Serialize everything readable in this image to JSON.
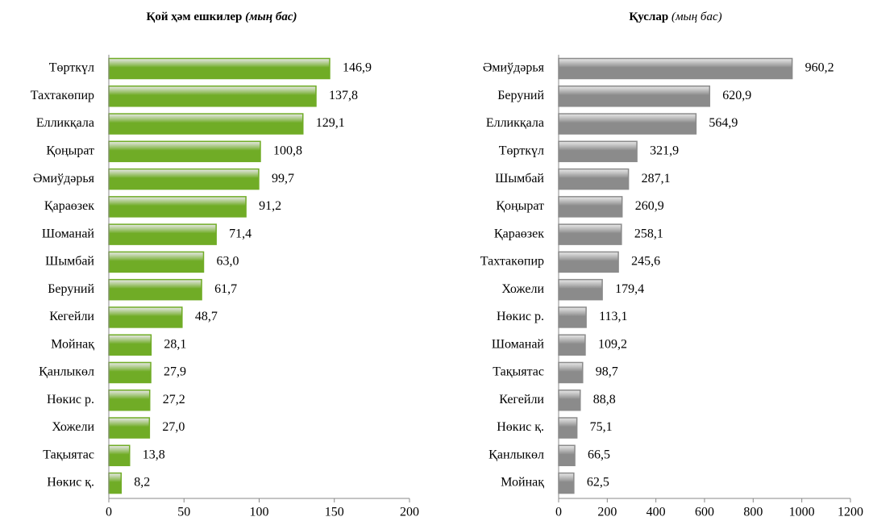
{
  "chart_data": [
    {
      "type": "bar",
      "orientation": "horizontal",
      "title": "Қой ҳәм ешкилер",
      "subtitle": "(мың бас)",
      "categories": [
        "Төрткүл",
        "Тахтакөпир",
        "Елликқала",
        "Қоңырат",
        "Әмиўдәрья",
        "Қараөзек",
        "Шоманай",
        "Шымбай",
        "Беруний",
        "Кегейли",
        "Мойнақ",
        "Қанлыкөл",
        "Нөкис р.",
        "Хожели",
        "Тақыятас",
        "Нөкис қ."
      ],
      "values": [
        146.9,
        137.8,
        129.1,
        100.8,
        99.7,
        91.2,
        71.4,
        63.0,
        61.7,
        48.7,
        28.1,
        27.9,
        27.2,
        27.0,
        13.8,
        8.2
      ],
      "value_labels": [
        "146,9",
        "137,8",
        "129,1",
        "100,8",
        "99,7",
        "91,2",
        "71,4",
        "63,0",
        "61,7",
        "48,7",
        "28,1",
        "27,9",
        "27,2",
        "27,0",
        "13,8",
        "8,2"
      ],
      "xlim": [
        0,
        200
      ],
      "xticks": [
        0,
        50,
        100,
        150,
        200
      ],
      "color": "#7cbf2a"
    },
    {
      "type": "bar",
      "orientation": "horizontal",
      "title": "Қуслар",
      "subtitle": "(мың бас)",
      "categories": [
        "Әмиўдәрья",
        "Беруний",
        "Елликқала",
        "Төрткүл",
        "Шымбай",
        "Қоңырат",
        "Қараөзек",
        "Тахтакөпир",
        "Хожели",
        "Нөкис р.",
        "Шоманай",
        "Тақыятас",
        "Кегейли",
        "Нөкис қ.",
        "Қанлыкөл",
        "Мойнақ"
      ],
      "values": [
        960.2,
        620.9,
        564.9,
        321.9,
        287.1,
        260.9,
        258.1,
        245.6,
        179.4,
        113.1,
        109.2,
        98.7,
        88.8,
        75.1,
        66.5,
        62.5
      ],
      "value_labels": [
        "960,2",
        "620,9",
        "564,9",
        "321,9",
        "287,1",
        "260,9",
        "258,1",
        "245,6",
        "179,4",
        "113,1",
        "109,2",
        "98,7",
        "88,8",
        "75,1",
        "66,5",
        "62,5"
      ],
      "xlim": [
        0,
        1200
      ],
      "xticks": [
        0,
        200,
        400,
        600,
        800,
        1000,
        1200
      ],
      "color": "#9a9a9a"
    }
  ]
}
